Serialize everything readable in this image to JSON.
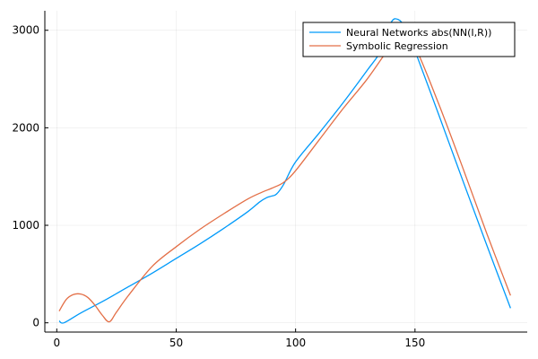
{
  "chart_data": {
    "type": "line",
    "title": "",
    "xlabel": "",
    "ylabel": "",
    "xlim": [
      -5,
      197
    ],
    "ylim": [
      -95,
      3200
    ],
    "grid": true,
    "legend_position": "top-right",
    "x_ticks": [
      0,
      50,
      100,
      150
    ],
    "x_tick_labels": [
      "0",
      "50",
      "100",
      "150"
    ],
    "y_ticks": [
      0,
      1000,
      2000,
      3000
    ],
    "y_tick_labels": [
      "0",
      "1000",
      "2000",
      "3000"
    ],
    "series": [
      {
        "name": "Neural Networks abs(NN(I,R))",
        "color": "#009AFA",
        "x": [
          1,
          3,
          10,
          20,
          30,
          40,
          50,
          60,
          70,
          80,
          85,
          88,
          90,
          92,
          95,
          100,
          110,
          120,
          130,
          136,
          140,
          143,
          146,
          150,
          160,
          170,
          180,
          190
        ],
        "y": [
          20,
          0,
          100,
          230,
          370,
          510,
          660,
          810,
          970,
          1140,
          1240,
          1285,
          1300,
          1320,
          1420,
          1650,
          1950,
          2260,
          2590,
          2800,
          3080,
          3110,
          3020,
          2790,
          2130,
          1460,
          800,
          150
        ]
      },
      {
        "name": "Symbolic Regression",
        "color": "#E36F47",
        "x": [
          1,
          4,
          7,
          10,
          13,
          16,
          19,
          22,
          25,
          30,
          40,
          50,
          60,
          70,
          80,
          86,
          90,
          95,
          100,
          110,
          120,
          130,
          140,
          145,
          150,
          160,
          170,
          180,
          190
        ],
        "y": [
          120,
          240,
          290,
          295,
          260,
          180,
          80,
          10,
          110,
          280,
          580,
          780,
          960,
          1120,
          1270,
          1340,
          1380,
          1440,
          1560,
          1880,
          2200,
          2500,
          2840,
          2920,
          2830,
          2240,
          1590,
          920,
          280
        ]
      }
    ]
  }
}
